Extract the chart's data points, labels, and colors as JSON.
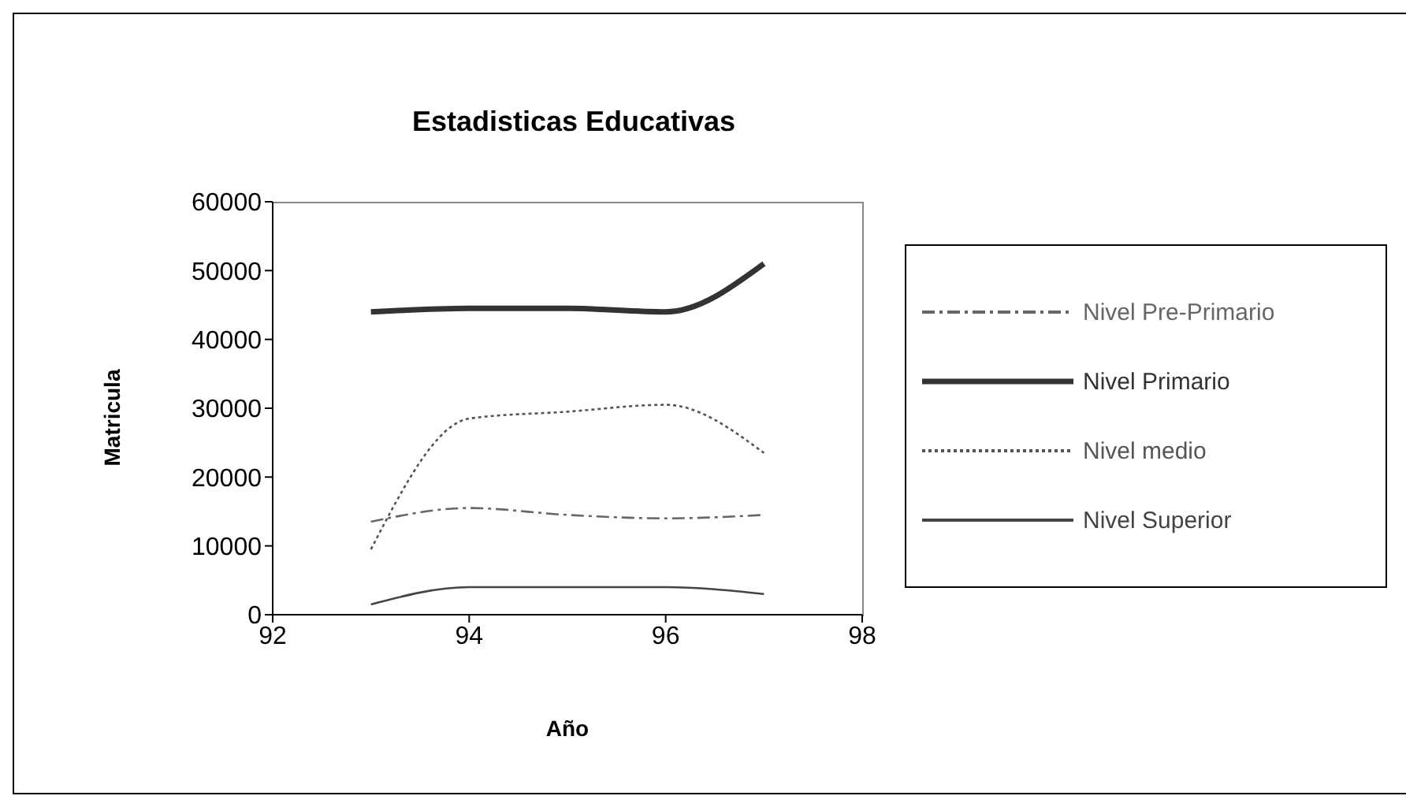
{
  "chart_data": {
    "type": "line",
    "title": "Estadisticas Educativas",
    "xlabel": "Año",
    "ylabel": "Matricula",
    "x": [
      93,
      94,
      95,
      96,
      97
    ],
    "series": [
      {
        "name": "Nivel Pre-Primario",
        "color": "#666666",
        "line_style": "dashed",
        "values": [
          13500,
          15500,
          14500,
          14000,
          14500
        ]
      },
      {
        "name": "Nivel Primario",
        "color": "#333333",
        "line_style": "solid",
        "values": [
          44000,
          44500,
          44500,
          44000,
          51000
        ]
      },
      {
        "name": "Nivel medio",
        "color": "#555555",
        "line_style": "dotted",
        "values": [
          9500,
          28500,
          29500,
          30500,
          23500
        ]
      },
      {
        "name": "Nivel Superior",
        "color": "#444444",
        "line_style": "solid",
        "values": [
          1500,
          4000,
          4000,
          4000,
          3000
        ]
      }
    ],
    "xlim": [
      92,
      98
    ],
    "xticks": [
      92,
      94,
      96,
      98
    ],
    "ylim": [
      0,
      60000
    ],
    "yticks": [
      0,
      10000,
      20000,
      30000,
      40000,
      50000,
      60000
    ],
    "grid": false,
    "legend": "right",
    "marker": "none"
  }
}
